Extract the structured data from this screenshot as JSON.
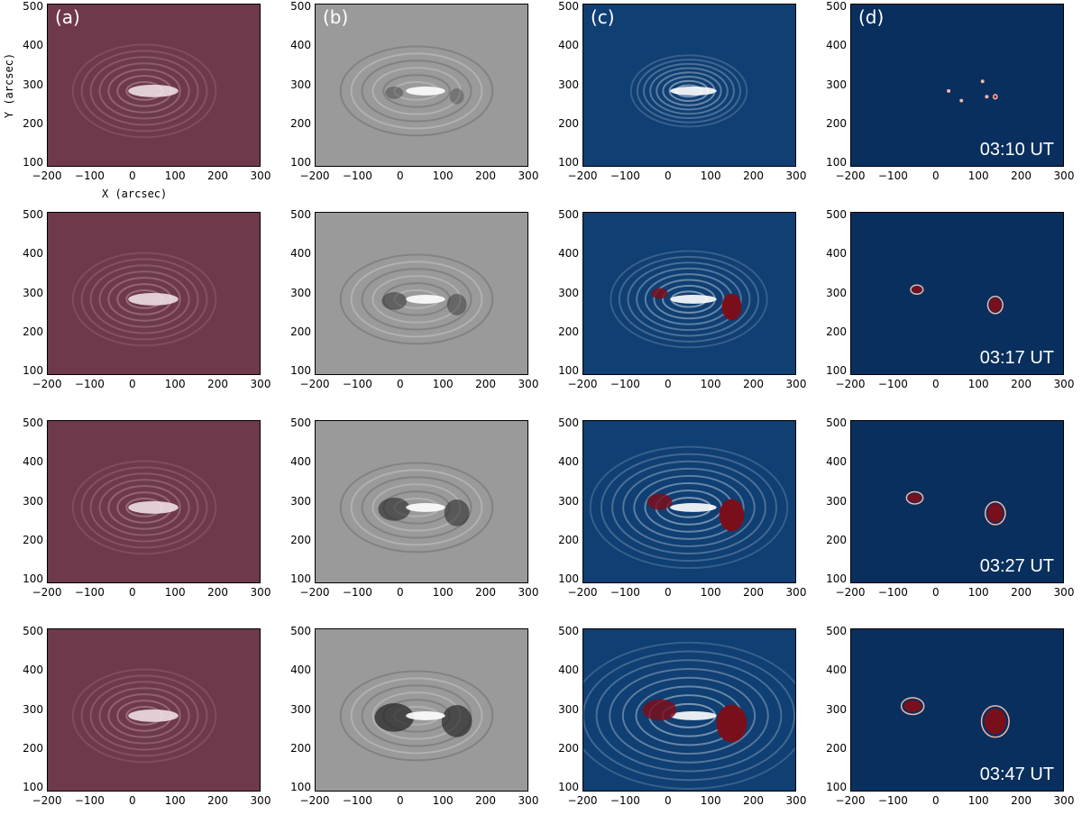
{
  "figure": {
    "columns": [
      {
        "label": "(a)",
        "colormap": "sdo-171-purple",
        "base": "#6e3a4b",
        "bright": "#f6e8ec"
      },
      {
        "label": "(b)",
        "colormap": "grayscale-difference",
        "base": "#9a9a9a",
        "bright": "#ffffff"
      },
      {
        "label": "(c)",
        "colormap": "blue-white-red",
        "base": "#0f3f73",
        "bright": "#ffffff"
      },
      {
        "label": "(d)",
        "colormap": "blue-white-red-mask",
        "base": "#092f5e",
        "bright": "#ffffff"
      }
    ],
    "timestamps": [
      "03:10 UT",
      "03:17 UT",
      "03:27 UT",
      "03:47 UT"
    ],
    "x_ticks": [
      "−200",
      "−100",
      "0",
      "100",
      "200",
      "300"
    ],
    "y_ticks": [
      "500",
      "400",
      "300",
      "200",
      "100"
    ],
    "xlabel": "X (arcsec)",
    "ylabel": "Y (arcsec)",
    "x_range": [
      -200,
      300
    ],
    "y_range": [
      90,
      510
    ],
    "colors": {
      "mask_red": "#7a0f1c",
      "mask_pink": "#f4b8a8"
    }
  }
}
